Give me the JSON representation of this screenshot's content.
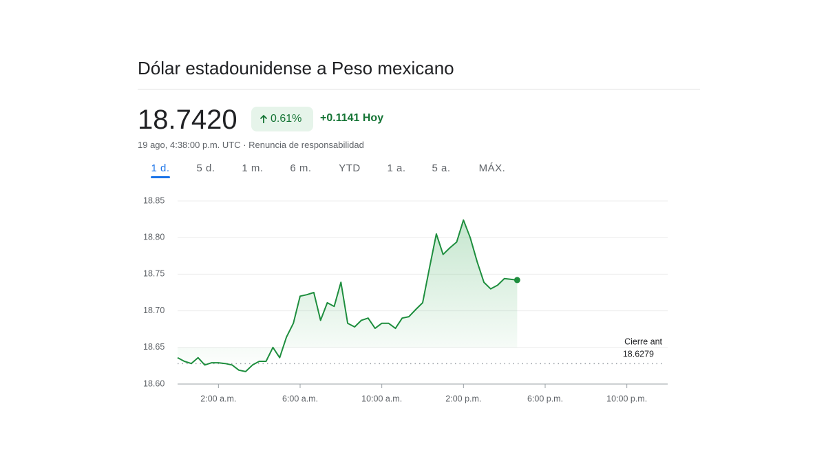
{
  "header": {
    "title": "Dólar estadounidense a Peso mexicano",
    "price": "18.7420",
    "change_percent": "0.61%",
    "change": "+0.1141",
    "period": "Hoy",
    "timestamp": "19 ago, 4:38:00 p.m. UTC",
    "disclaimer": "Renuncia de responsabilidad"
  },
  "tabs": {
    "items": [
      "1 d.",
      "5 d.",
      "1 m.",
      "6 m.",
      "YTD",
      "1 a.",
      "5 a.",
      "MÁX."
    ],
    "selected": 0
  },
  "chart_data": {
    "type": "line",
    "x": [
      0,
      0.33,
      0.67,
      1,
      1.33,
      1.67,
      2,
      2.33,
      2.67,
      3,
      3.33,
      3.67,
      4,
      4.33,
      4.67,
      5,
      5.33,
      5.67,
      6,
      6.33,
      6.67,
      7,
      7.33,
      7.67,
      8,
      8.33,
      8.67,
      9,
      9.33,
      9.67,
      10,
      10.33,
      10.67,
      11,
      11.33,
      11.67,
      12,
      12.33,
      12.67,
      13,
      13.33,
      13.67,
      14,
      14.33,
      14.67,
      15,
      15.33,
      15.67,
      16,
      16.63
    ],
    "series": [
      {
        "color": "#1e8e3e",
        "values": [
          18.636,
          18.631,
          18.628,
          18.636,
          18.626,
          18.629,
          18.629,
          18.628,
          18.626,
          18.619,
          18.617,
          18.626,
          18.631,
          18.631,
          18.65,
          18.636,
          18.664,
          18.683,
          18.72,
          18.722,
          18.725,
          18.687,
          18.711,
          18.706,
          18.739,
          18.683,
          18.678,
          18.687,
          18.69,
          18.676,
          18.683,
          18.683,
          18.676,
          18.69,
          18.692,
          18.702,
          18.711,
          18.758,
          18.805,
          18.777,
          18.786,
          18.794,
          18.824,
          18.8,
          18.767,
          18.739,
          18.73,
          18.735,
          18.744,
          18.742
        ]
      }
    ],
    "xlim": [
      0,
      24
    ],
    "xticks": [
      {
        "value": 2,
        "label": "2:00 a.m."
      },
      {
        "value": 6,
        "label": "6:00 a.m."
      },
      {
        "value": 10,
        "label": "10:00 a.m."
      },
      {
        "value": 14,
        "label": "2:00 p.m."
      },
      {
        "value": 18,
        "label": "6:00 p.m."
      },
      {
        "value": 22,
        "label": "10:00 p.m."
      }
    ],
    "ylim": [
      18.6,
      18.85
    ],
    "yticks": [
      {
        "value": 18.6,
        "label": "18.60"
      },
      18.65,
      {
        "value": 18.7,
        "label": "18.70"
      },
      18.75,
      {
        "value": 18.8,
        "label": "18.80"
      },
      18.85
    ],
    "grid": true,
    "prev_close_label": "Cierre ant",
    "prev_close": 18.6279
  }
}
